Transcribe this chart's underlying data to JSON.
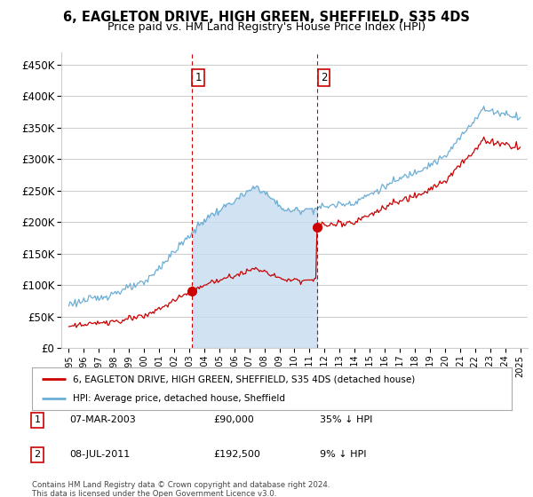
{
  "title_line1": "6, EAGLETON DRIVE, HIGH GREEN, SHEFFIELD, S35 4DS",
  "title_line2": "Price paid vs. HM Land Registry's House Price Index (HPI)",
  "legend_label_red": "6, EAGLETON DRIVE, HIGH GREEN, SHEFFIELD, S35 4DS (detached house)",
  "legend_label_blue": "HPI: Average price, detached house, Sheffield",
  "footnote": "Contains HM Land Registry data © Crown copyright and database right 2024.\nThis data is licensed under the Open Government Licence v3.0.",
  "table_rows": [
    {
      "num": "1",
      "date": "07-MAR-2003",
      "price": "£90,000",
      "hpi": "35% ↓ HPI"
    },
    {
      "num": "2",
      "date": "08-JUL-2011",
      "price": "£192,500",
      "hpi": "9% ↓ HPI"
    }
  ],
  "sale1_year": 2003.18,
  "sale1_price": 90000,
  "sale2_year": 2011.52,
  "sale2_price": 192500,
  "vline1_year": 2003.18,
  "vline2_year": 2011.52,
  "ylim_min": 0,
  "ylim_max": 470000,
  "hpi_color": "#6baed6",
  "hpi_fill_color": "#c6dbef",
  "sale_color": "#cc0000",
  "vline_color": "#cc0000",
  "background_color": "#ffffff",
  "plot_bg_color": "#ffffff",
  "grid_color": "#cccccc",
  "title_fontsize": 11,
  "subtitle_fontsize": 10
}
